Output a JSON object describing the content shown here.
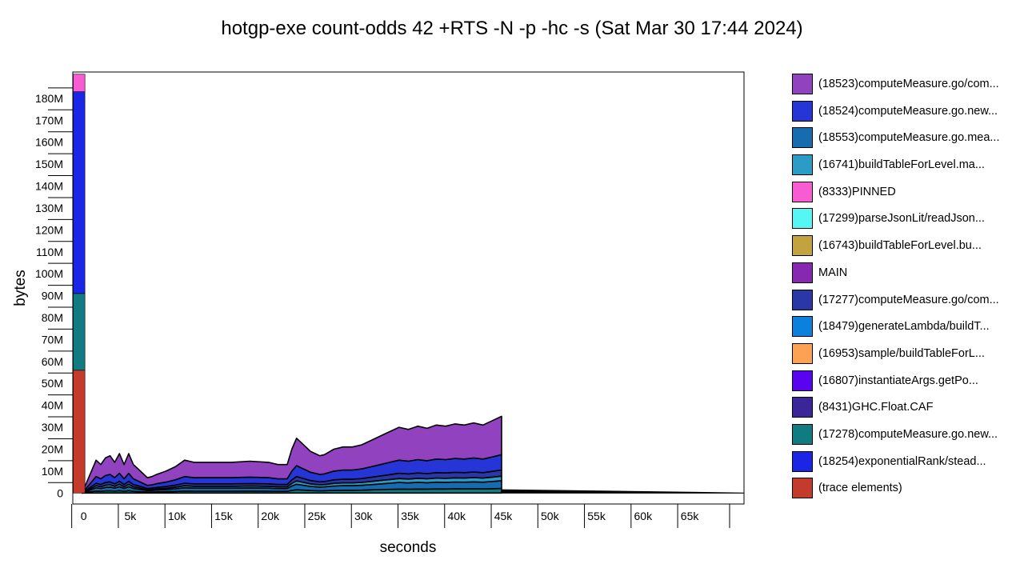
{
  "chart_data": {
    "type": "area",
    "title": "hotgp-exe count-odds 42 +RTS -N -p -hc -s (Sat Mar 30 17:44 2024)",
    "xlabel": "seconds",
    "ylabel": "bytes",
    "xlim": [
      -1000,
      71000
    ],
    "ylim": [
      -5000000,
      192000000
    ],
    "x_ticks": [
      0,
      5000,
      10000,
      15000,
      20000,
      25000,
      30000,
      35000,
      40000,
      45000,
      50000,
      55000,
      60000,
      65000
    ],
    "x_tick_labels": [
      "0",
      "5k",
      "10k",
      "15k",
      "20k",
      "25k",
      "30k",
      "35k",
      "40k",
      "45k",
      "50k",
      "55k",
      "60k",
      "65k"
    ],
    "y_ticks": [
      0,
      10000000,
      20000000,
      30000000,
      40000000,
      50000000,
      60000000,
      70000000,
      80000000,
      90000000,
      100000000,
      110000000,
      120000000,
      130000000,
      140000000,
      150000000,
      160000000,
      170000000,
      180000000
    ],
    "y_tick_labels": [
      "0",
      "10M",
      "20M",
      "30M",
      "40M",
      "50M",
      "60M",
      "70M",
      "80M",
      "90M",
      "100M",
      "110M",
      "120M",
      "130M",
      "140M",
      "150M",
      "160M",
      "170M",
      "180M"
    ],
    "legend_position": "right",
    "series": [
      {
        "name": "(18523)computeMeasure.go/com...",
        "color": "#9142bf"
      },
      {
        "name": "(18524)computeMeasure.go.new...",
        "color": "#2636d6"
      },
      {
        "name": "(18553)computeMeasure.go.mea...",
        "color": "#166cae"
      },
      {
        "name": "(16741)buildTableForLevel.ma...",
        "color": "#2a9cc6"
      },
      {
        "name": "(8333)PINNED",
        "color": "#f85cd3"
      },
      {
        "name": "(17299)parseJsonLit/readJson...",
        "color": "#55f7f5"
      },
      {
        "name": "(16743)buildTableForLevel.bu...",
        "color": "#c2a33e"
      },
      {
        "name": "MAIN",
        "color": "#8828b2"
      },
      {
        "name": "(17277)computeMeasure.go/com...",
        "color": "#2a37a7"
      },
      {
        "name": "(18479)generateLambda/buildT...",
        "color": "#0b80dc"
      },
      {
        "name": "(16953)sample/buildTableForL...",
        "color": "#fda152"
      },
      {
        "name": "(16807)instantiateArgs.getPo...",
        "color": "#5a03f1"
      },
      {
        "name": "(8431)GHC.Float.CAF",
        "color": "#3a2698"
      },
      {
        "name": "(17278)computeMeasure.go.new...",
        "color": "#117b82"
      },
      {
        "name": "(18254)exponentialRank/stead...",
        "color": "#1b25e6"
      },
      {
        "name": "(trace elements)",
        "color": "#c53b2b"
      }
    ],
    "spike_at_start": {
      "x": 100,
      "stack": [
        {
          "name": "(trace elements)",
          "value": 56000000
        },
        {
          "name": "(17278)computeMeasure.go.new...",
          "value": 35000000
        },
        {
          "name": "(18254)exponentialRank/stead...",
          "value": 92000000
        },
        {
          "name": "(8333)PINNED",
          "value": 8000000
        }
      ]
    },
    "main_profile": {
      "x": [
        0,
        500,
        1000,
        1500,
        2000,
        2500,
        3000,
        3500,
        4000,
        4500,
        5000,
        5500,
        6000,
        6500,
        7000,
        7500,
        8000,
        9000,
        10000,
        11000,
        12000,
        14000,
        16000,
        18000,
        20000,
        21000,
        22000,
        22500,
        23000,
        23500,
        24000,
        24500,
        25000,
        25500,
        26000,
        27000,
        28000,
        29000,
        30000,
        31000,
        32000,
        33000,
        34000,
        35000,
        36000,
        37000,
        38000,
        39000,
        40000,
        41000,
        42000,
        43000,
        44000,
        45000
      ],
      "total": [
        0,
        5000000,
        10000000,
        15000000,
        13000000,
        16000000,
        17000000,
        14000000,
        18000000,
        13000000,
        18000000,
        13000000,
        11000000,
        9000000,
        7000000,
        7500000,
        8500000,
        10000000,
        12000000,
        15000000,
        14000000,
        14000000,
        14000000,
        14500000,
        14000000,
        13000000,
        13000000,
        20000000,
        25000000,
        23000000,
        21000000,
        19000000,
        18000000,
        17000000,
        17500000,
        20000000,
        21000000,
        21000000,
        22000000,
        24000000,
        26000000,
        28000000,
        30000000,
        29000000,
        30500000,
        29500000,
        31000000,
        30500000,
        31500000,
        31000000,
        32000000,
        31000000,
        33000000,
        35000000
      ],
      "layers": [
        {
          "name": "(17278)computeMeasure.go.new...",
          "fraction": 0.06
        },
        {
          "name": "(18553)computeMeasure.go.mea...",
          "fraction": 0.1
        },
        {
          "name": "(16741)buildTableForLevel.ma...",
          "fraction": 0.06
        },
        {
          "name": "(17277)computeMeasure.go/com...",
          "fraction": 0.08
        },
        {
          "name": "(18524)computeMeasure.go.new...",
          "fraction": 0.2
        },
        {
          "name": "(18523)computeMeasure.go/com...",
          "fraction": 0.5
        }
      ]
    },
    "tail": {
      "x": [
        45000,
        71000
      ],
      "values": [
        1500000,
        0
      ]
    }
  }
}
